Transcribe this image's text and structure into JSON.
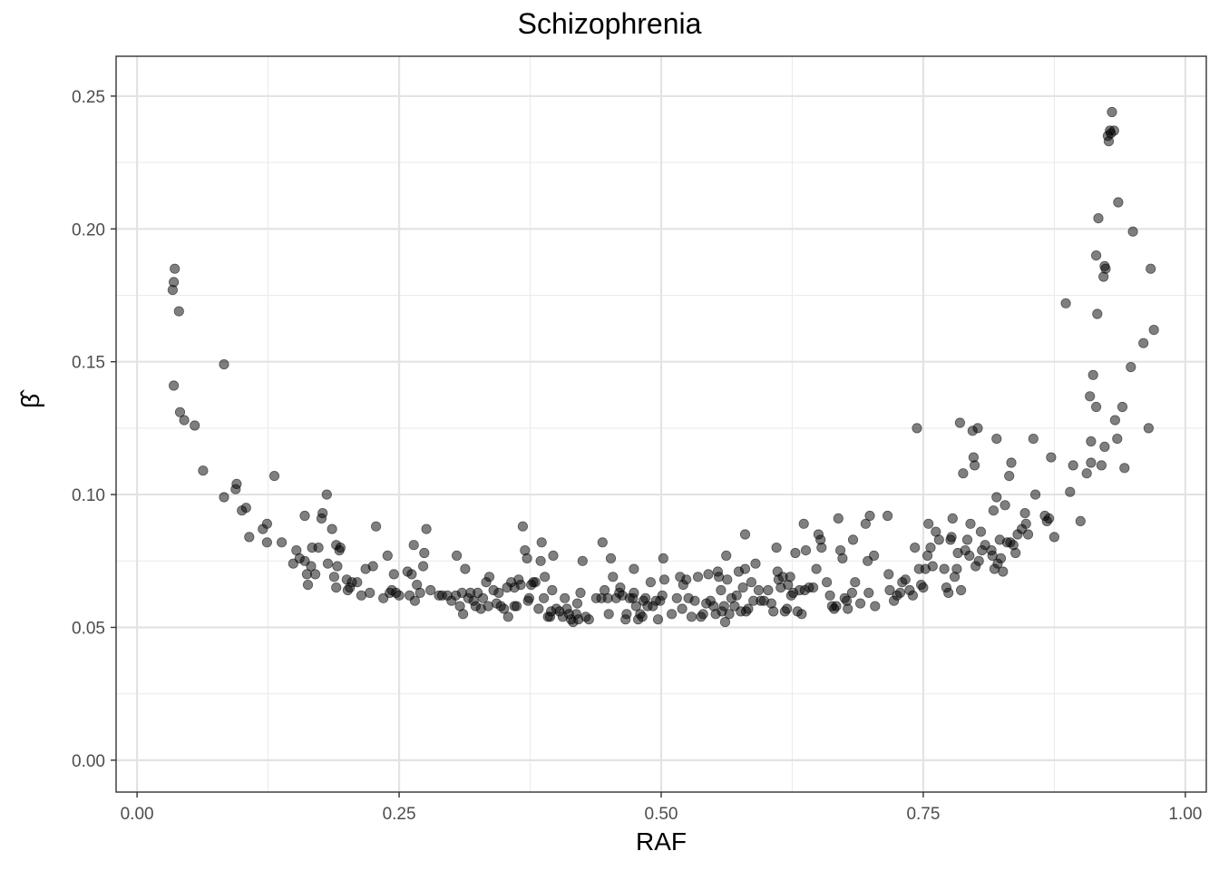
{
  "chart_data": {
    "type": "scatter",
    "title": "Schizophrenia",
    "xlabel": "RAF",
    "ylabel": "β̂",
    "xlim": [
      -0.02,
      1.02
    ],
    "ylim": [
      -0.012,
      0.265
    ],
    "xticks": [
      {
        "value": 0.0,
        "label": "0.00"
      },
      {
        "value": 0.25,
        "label": "0.25"
      },
      {
        "value": 0.5,
        "label": "0.50"
      },
      {
        "value": 0.75,
        "label": "0.75"
      },
      {
        "value": 1.0,
        "label": "1.00"
      }
    ],
    "yticks": [
      {
        "value": 0.0,
        "label": "0.00"
      },
      {
        "value": 0.05,
        "label": "0.05"
      },
      {
        "value": 0.1,
        "label": "0.10"
      },
      {
        "value": 0.15,
        "label": "0.15"
      },
      {
        "value": 0.2,
        "label": "0.20"
      },
      {
        "value": 0.25,
        "label": "0.25"
      }
    ],
    "grid": true,
    "point_color": "#000000",
    "points": [
      [
        0.034,
        0.177
      ],
      [
        0.035,
        0.18
      ],
      [
        0.036,
        0.185
      ],
      [
        0.035,
        0.141
      ],
      [
        0.04,
        0.169
      ],
      [
        0.041,
        0.131
      ],
      [
        0.045,
        0.128
      ],
      [
        0.055,
        0.126
      ],
      [
        0.063,
        0.109
      ],
      [
        0.083,
        0.149
      ],
      [
        0.083,
        0.099
      ],
      [
        0.094,
        0.102
      ],
      [
        0.095,
        0.104
      ],
      [
        0.1,
        0.094
      ],
      [
        0.104,
        0.095
      ],
      [
        0.107,
        0.084
      ],
      [
        0.12,
        0.087
      ],
      [
        0.124,
        0.082
      ],
      [
        0.124,
        0.089
      ],
      [
        0.131,
        0.107
      ],
      [
        0.138,
        0.082
      ],
      [
        0.149,
        0.074
      ],
      [
        0.152,
        0.079
      ],
      [
        0.155,
        0.076
      ],
      [
        0.16,
        0.092
      ],
      [
        0.16,
        0.075
      ],
      [
        0.162,
        0.07
      ],
      [
        0.163,
        0.066
      ],
      [
        0.166,
        0.073
      ],
      [
        0.167,
        0.08
      ],
      [
        0.17,
        0.07
      ],
      [
        0.173,
        0.08
      ],
      [
        0.176,
        0.091
      ],
      [
        0.177,
        0.093
      ],
      [
        0.181,
        0.1
      ],
      [
        0.182,
        0.074
      ],
      [
        0.186,
        0.087
      ],
      [
        0.188,
        0.069
      ],
      [
        0.19,
        0.065
      ],
      [
        0.191,
        0.073
      ],
      [
        0.19,
        0.081
      ],
      [
        0.193,
        0.079
      ],
      [
        0.194,
        0.08
      ],
      [
        0.2,
        0.068
      ],
      [
        0.201,
        0.064
      ],
      [
        0.203,
        0.065
      ],
      [
        0.205,
        0.067
      ],
      [
        0.21,
        0.067
      ],
      [
        0.214,
        0.062
      ],
      [
        0.218,
        0.072
      ],
      [
        0.222,
        0.063
      ],
      [
        0.225,
        0.073
      ],
      [
        0.228,
        0.088
      ],
      [
        0.235,
        0.061
      ],
      [
        0.239,
        0.077
      ],
      [
        0.241,
        0.063
      ],
      [
        0.243,
        0.064
      ],
      [
        0.245,
        0.07
      ],
      [
        0.247,
        0.063
      ],
      [
        0.25,
        0.062
      ],
      [
        0.258,
        0.071
      ],
      [
        0.26,
        0.062
      ],
      [
        0.262,
        0.07
      ],
      [
        0.264,
        0.081
      ],
      [
        0.265,
        0.06
      ],
      [
        0.267,
        0.066
      ],
      [
        0.27,
        0.063
      ],
      [
        0.273,
        0.073
      ],
      [
        0.274,
        0.078
      ],
      [
        0.276,
        0.087
      ],
      [
        0.28,
        0.064
      ],
      [
        0.288,
        0.062
      ],
      [
        0.291,
        0.062
      ],
      [
        0.296,
        0.062
      ],
      [
        0.3,
        0.06
      ],
      [
        0.304,
        0.062
      ],
      [
        0.305,
        0.077
      ],
      [
        0.308,
        0.058
      ],
      [
        0.31,
        0.063
      ],
      [
        0.311,
        0.055
      ],
      [
        0.313,
        0.072
      ],
      [
        0.316,
        0.061
      ],
      [
        0.318,
        0.063
      ],
      [
        0.321,
        0.06
      ],
      [
        0.323,
        0.058
      ],
      [
        0.325,
        0.063
      ],
      [
        0.328,
        0.057
      ],
      [
        0.33,
        0.061
      ],
      [
        0.333,
        0.067
      ],
      [
        0.335,
        0.058
      ],
      [
        0.336,
        0.069
      ],
      [
        0.34,
        0.064
      ],
      [
        0.343,
        0.059
      ],
      [
        0.345,
        0.063
      ],
      [
        0.347,
        0.058
      ],
      [
        0.35,
        0.057
      ],
      [
        0.353,
        0.065
      ],
      [
        0.354,
        0.054
      ],
      [
        0.357,
        0.067
      ],
      [
        0.36,
        0.065
      ],
      [
        0.36,
        0.058
      ],
      [
        0.362,
        0.058
      ],
      [
        0.364,
        0.068
      ],
      [
        0.366,
        0.066
      ],
      [
        0.368,
        0.088
      ],
      [
        0.37,
        0.079
      ],
      [
        0.372,
        0.076
      ],
      [
        0.373,
        0.06
      ],
      [
        0.374,
        0.061
      ],
      [
        0.376,
        0.066
      ],
      [
        0.378,
        0.067
      ],
      [
        0.38,
        0.067
      ],
      [
        0.383,
        0.057
      ],
      [
        0.385,
        0.075
      ],
      [
        0.386,
        0.082
      ],
      [
        0.388,
        0.061
      ],
      [
        0.389,
        0.069
      ],
      [
        0.392,
        0.054
      ],
      [
        0.394,
        0.054
      ],
      [
        0.395,
        0.056
      ],
      [
        0.396,
        0.064
      ],
      [
        0.397,
        0.077
      ],
      [
        0.4,
        0.057
      ],
      [
        0.403,
        0.056
      ],
      [
        0.406,
        0.054
      ],
      [
        0.408,
        0.061
      ],
      [
        0.41,
        0.057
      ],
      [
        0.412,
        0.055
      ],
      [
        0.414,
        0.053
      ],
      [
        0.416,
        0.052
      ],
      [
        0.419,
        0.055
      ],
      [
        0.42,
        0.059
      ],
      [
        0.421,
        0.053
      ],
      [
        0.423,
        0.063
      ],
      [
        0.425,
        0.075
      ],
      [
        0.428,
        0.054
      ],
      [
        0.431,
        0.053
      ],
      [
        0.438,
        0.061
      ],
      [
        0.443,
        0.061
      ],
      [
        0.444,
        0.082
      ],
      [
        0.446,
        0.064
      ],
      [
        0.449,
        0.061
      ],
      [
        0.45,
        0.055
      ],
      [
        0.452,
        0.076
      ],
      [
        0.454,
        0.069
      ],
      [
        0.457,
        0.061
      ],
      [
        0.46,
        0.063
      ],
      [
        0.461,
        0.065
      ],
      [
        0.463,
        0.062
      ],
      [
        0.466,
        0.053
      ],
      [
        0.467,
        0.055
      ],
      [
        0.47,
        0.061
      ],
      [
        0.473,
        0.061
      ],
      [
        0.474,
        0.072
      ],
      [
        0.474,
        0.063
      ],
      [
        0.476,
        0.058
      ],
      [
        0.478,
        0.053
      ],
      [
        0.48,
        0.055
      ],
      [
        0.482,
        0.054
      ],
      [
        0.483,
        0.06
      ],
      [
        0.485,
        0.061
      ],
      [
        0.487,
        0.058
      ],
      [
        0.49,
        0.067
      ],
      [
        0.492,
        0.058
      ],
      [
        0.495,
        0.06
      ],
      [
        0.497,
        0.053
      ],
      [
        0.499,
        0.06
      ],
      [
        0.501,
        0.062
      ],
      [
        0.502,
        0.076
      ],
      [
        0.503,
        0.068
      ],
      [
        0.51,
        0.055
      ],
      [
        0.515,
        0.061
      ],
      [
        0.518,
        0.069
      ],
      [
        0.52,
        0.057
      ],
      [
        0.521,
        0.066
      ],
      [
        0.524,
        0.068
      ],
      [
        0.526,
        0.061
      ],
      [
        0.529,
        0.054
      ],
      [
        0.532,
        0.06
      ],
      [
        0.535,
        0.069
      ],
      [
        0.538,
        0.054
      ],
      [
        0.54,
        0.055
      ],
      [
        0.543,
        0.059
      ],
      [
        0.545,
        0.07
      ],
      [
        0.547,
        0.06
      ],
      [
        0.55,
        0.058
      ],
      [
        0.552,
        0.055
      ],
      [
        0.554,
        0.071
      ],
      [
        0.555,
        0.069
      ],
      [
        0.557,
        0.064
      ],
      [
        0.558,
        0.056
      ],
      [
        0.56,
        0.058
      ],
      [
        0.561,
        0.052
      ],
      [
        0.562,
        0.077
      ],
      [
        0.563,
        0.068
      ],
      [
        0.565,
        0.055
      ],
      [
        0.567,
        0.061
      ],
      [
        0.57,
        0.058
      ],
      [
        0.572,
        0.062
      ],
      [
        0.574,
        0.071
      ],
      [
        0.576,
        0.056
      ],
      [
        0.578,
        0.065
      ],
      [
        0.58,
        0.072
      ],
      [
        0.58,
        0.085
      ],
      [
        0.581,
        0.056
      ],
      [
        0.583,
        0.057
      ],
      [
        0.586,
        0.067
      ],
      [
        0.588,
        0.06
      ],
      [
        0.59,
        0.074
      ],
      [
        0.593,
        0.064
      ],
      [
        0.595,
        0.06
      ],
      [
        0.598,
        0.06
      ],
      [
        0.602,
        0.064
      ],
      [
        0.605,
        0.059
      ],
      [
        0.607,
        0.056
      ],
      [
        0.61,
        0.08
      ],
      [
        0.611,
        0.071
      ],
      [
        0.612,
        0.068
      ],
      [
        0.614,
        0.065
      ],
      [
        0.616,
        0.069
      ],
      [
        0.618,
        0.056
      ],
      [
        0.62,
        0.057
      ],
      [
        0.621,
        0.066
      ],
      [
        0.623,
        0.069
      ],
      [
        0.624,
        0.062
      ],
      [
        0.626,
        0.063
      ],
      [
        0.628,
        0.078
      ],
      [
        0.63,
        0.056
      ],
      [
        0.632,
        0.064
      ],
      [
        0.634,
        0.055
      ],
      [
        0.636,
        0.089
      ],
      [
        0.637,
        0.064
      ],
      [
        0.638,
        0.079
      ],
      [
        0.641,
        0.065
      ],
      [
        0.645,
        0.065
      ],
      [
        0.648,
        0.072
      ],
      [
        0.65,
        0.085
      ],
      [
        0.652,
        0.083
      ],
      [
        0.653,
        0.08
      ],
      [
        0.658,
        0.067
      ],
      [
        0.661,
        0.062
      ],
      [
        0.663,
        0.058
      ],
      [
        0.665,
        0.057
      ],
      [
        0.667,
        0.058
      ],
      [
        0.669,
        0.091
      ],
      [
        0.671,
        0.079
      ],
      [
        0.673,
        0.076
      ],
      [
        0.675,
        0.061
      ],
      [
        0.677,
        0.06
      ],
      [
        0.678,
        0.057
      ],
      [
        0.682,
        0.063
      ],
      [
        0.683,
        0.083
      ],
      [
        0.685,
        0.067
      ],
      [
        0.69,
        0.059
      ],
      [
        0.695,
        0.089
      ],
      [
        0.697,
        0.075
      ],
      [
        0.698,
        0.063
      ],
      [
        0.699,
        0.092
      ],
      [
        0.703,
        0.077
      ],
      [
        0.704,
        0.058
      ],
      [
        0.716,
        0.092
      ],
      [
        0.717,
        0.07
      ],
      [
        0.718,
        0.064
      ],
      [
        0.722,
        0.06
      ],
      [
        0.725,
        0.062
      ],
      [
        0.728,
        0.063
      ],
      [
        0.73,
        0.067
      ],
      [
        0.733,
        0.068
      ],
      [
        0.737,
        0.064
      ],
      [
        0.74,
        0.062
      ],
      [
        0.742,
        0.08
      ],
      [
        0.744,
        0.125
      ],
      [
        0.746,
        0.072
      ],
      [
        0.748,
        0.066
      ],
      [
        0.75,
        0.065
      ],
      [
        0.752,
        0.072
      ],
      [
        0.754,
        0.077
      ],
      [
        0.755,
        0.089
      ],
      [
        0.757,
        0.08
      ],
      [
        0.759,
        0.073
      ],
      [
        0.762,
        0.086
      ],
      [
        0.765,
        0.083
      ],
      [
        0.77,
        0.072
      ],
      [
        0.772,
        0.065
      ],
      [
        0.774,
        0.063
      ],
      [
        0.776,
        0.083
      ],
      [
        0.777,
        0.084
      ],
      [
        0.778,
        0.091
      ],
      [
        0.78,
        0.069
      ],
      [
        0.782,
        0.072
      ],
      [
        0.783,
        0.078
      ],
      [
        0.785,
        0.127
      ],
      [
        0.786,
        0.064
      ],
      [
        0.788,
        0.108
      ],
      [
        0.79,
        0.079
      ],
      [
        0.792,
        0.083
      ],
      [
        0.794,
        0.077
      ],
      [
        0.795,
        0.089
      ],
      [
        0.797,
        0.124
      ],
      [
        0.798,
        0.114
      ],
      [
        0.799,
        0.111
      ],
      [
        0.8,
        0.073
      ],
      [
        0.802,
        0.125
      ],
      [
        0.803,
        0.075
      ],
      [
        0.805,
        0.086
      ],
      [
        0.806,
        0.079
      ],
      [
        0.809,
        0.081
      ],
      [
        0.815,
        0.079
      ],
      [
        0.816,
        0.077
      ],
      [
        0.817,
        0.094
      ],
      [
        0.818,
        0.072
      ],
      [
        0.82,
        0.099
      ],
      [
        0.82,
        0.121
      ],
      [
        0.821,
        0.074
      ],
      [
        0.823,
        0.083
      ],
      [
        0.824,
        0.076
      ],
      [
        0.826,
        0.071
      ],
      [
        0.828,
        0.096
      ],
      [
        0.83,
        0.082
      ],
      [
        0.832,
        0.107
      ],
      [
        0.833,
        0.082
      ],
      [
        0.834,
        0.112
      ],
      [
        0.836,
        0.081
      ],
      [
        0.838,
        0.078
      ],
      [
        0.84,
        0.085
      ],
      [
        0.844,
        0.087
      ],
      [
        0.847,
        0.093
      ],
      [
        0.848,
        0.089
      ],
      [
        0.85,
        0.085
      ],
      [
        0.855,
        0.121
      ],
      [
        0.857,
        0.1
      ],
      [
        0.866,
        0.092
      ],
      [
        0.868,
        0.09
      ],
      [
        0.87,
        0.091
      ],
      [
        0.872,
        0.114
      ],
      [
        0.875,
        0.084
      ],
      [
        0.886,
        0.172
      ],
      [
        0.89,
        0.101
      ],
      [
        0.893,
        0.111
      ],
      [
        0.9,
        0.09
      ],
      [
        0.906,
        0.108
      ],
      [
        0.909,
        0.137
      ],
      [
        0.91,
        0.112
      ],
      [
        0.91,
        0.12
      ],
      [
        0.912,
        0.145
      ],
      [
        0.915,
        0.133
      ],
      [
        0.915,
        0.19
      ],
      [
        0.916,
        0.168
      ],
      [
        0.917,
        0.204
      ],
      [
        0.92,
        0.111
      ],
      [
        0.922,
        0.182
      ],
      [
        0.923,
        0.186
      ],
      [
        0.923,
        0.118
      ],
      [
        0.924,
        0.185
      ],
      [
        0.926,
        0.235
      ],
      [
        0.927,
        0.233
      ],
      [
        0.928,
        0.237
      ],
      [
        0.929,
        0.236
      ],
      [
        0.93,
        0.244
      ],
      [
        0.932,
        0.237
      ],
      [
        0.933,
        0.128
      ],
      [
        0.935,
        0.121
      ],
      [
        0.936,
        0.21
      ],
      [
        0.94,
        0.133
      ],
      [
        0.942,
        0.11
      ],
      [
        0.948,
        0.148
      ],
      [
        0.95,
        0.199
      ],
      [
        0.96,
        0.157
      ],
      [
        0.965,
        0.125
      ],
      [
        0.967,
        0.185
      ],
      [
        0.97,
        0.162
      ]
    ]
  }
}
